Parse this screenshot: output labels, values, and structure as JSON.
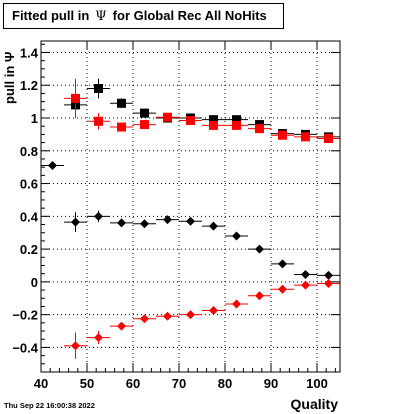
{
  "title": {
    "prefix": "Fitted pull in",
    "symbol": "Ψ",
    "suffix": "for Global Rec All NoHits"
  },
  "timestamp": "Thu Sep 22 16:00:38 2022",
  "chart_data": {
    "type": "scatter",
    "title": "Fitted pull in Ψ for Global Rec All NoHits",
    "xlabel": "Quality",
    "ylabel": "pull in Ψ",
    "xlim": [
      40,
      105
    ],
    "ylim": [
      -0.55,
      1.47
    ],
    "x_ticks": [
      40,
      50,
      60,
      70,
      80,
      90,
      100
    ],
    "y_ticks": [
      -0.4,
      -0.2,
      0,
      0.2,
      0.4,
      0.6,
      0.8,
      1,
      1.2,
      1.4
    ],
    "x_tick_labels": [
      "40",
      "50",
      "60",
      "70",
      "80",
      "90",
      "100"
    ],
    "y_tick_labels": [
      "−0.4",
      "−0.2",
      "0",
      "0.2",
      "0.4",
      "0.6",
      "0.8",
      "1",
      "1.2",
      "1.4"
    ],
    "grid": true,
    "series": [
      {
        "marker": "diamond",
        "color": "#000000",
        "points": [
          {
            "x": 42.5,
            "y": 0.71,
            "ex": 2.5,
            "ey": 0.02
          },
          {
            "x": 47.5,
            "y": 0.365,
            "ex": 2.5,
            "ey": 0.06
          },
          {
            "x": 52.5,
            "y": 0.4,
            "ex": 2.5,
            "ey": 0.035
          },
          {
            "x": 57.5,
            "y": 0.36,
            "ex": 2.5,
            "ey": 0.025
          },
          {
            "x": 62.5,
            "y": 0.355,
            "ex": 2.5,
            "ey": 0.015
          },
          {
            "x": 67.5,
            "y": 0.38,
            "ex": 2.5,
            "ey": 0.015
          },
          {
            "x": 72.5,
            "y": 0.37,
            "ex": 2.5,
            "ey": 0.012
          },
          {
            "x": 77.5,
            "y": 0.34,
            "ex": 2.5,
            "ey": 0.01
          },
          {
            "x": 82.5,
            "y": 0.28,
            "ex": 2.5,
            "ey": 0.01
          },
          {
            "x": 87.5,
            "y": 0.2,
            "ex": 2.5,
            "ey": 0.008
          },
          {
            "x": 92.5,
            "y": 0.11,
            "ex": 2.5,
            "ey": 0.006
          },
          {
            "x": 97.5,
            "y": 0.045,
            "ex": 2.5,
            "ey": 0.005
          },
          {
            "x": 102.5,
            "y": 0.04,
            "ex": 2.5,
            "ey": 0.005
          }
        ]
      },
      {
        "marker": "diamond",
        "color": "#ff0000",
        "points": [
          {
            "x": 47.5,
            "y": -0.39,
            "ex": 2.5,
            "ey": 0.08
          },
          {
            "x": 52.5,
            "y": -0.34,
            "ex": 2.5,
            "ey": 0.04
          },
          {
            "x": 57.5,
            "y": -0.27,
            "ex": 2.5,
            "ey": 0.025
          },
          {
            "x": 62.5,
            "y": -0.225,
            "ex": 2.5,
            "ey": 0.015
          },
          {
            "x": 67.5,
            "y": -0.21,
            "ex": 2.5,
            "ey": 0.012
          },
          {
            "x": 72.5,
            "y": -0.2,
            "ex": 2.5,
            "ey": 0.01
          },
          {
            "x": 77.5,
            "y": -0.175,
            "ex": 2.5,
            "ey": 0.01
          },
          {
            "x": 82.5,
            "y": -0.135,
            "ex": 2.5,
            "ey": 0.008
          },
          {
            "x": 87.5,
            "y": -0.085,
            "ex": 2.5,
            "ey": 0.007
          },
          {
            "x": 92.5,
            "y": -0.045,
            "ex": 2.5,
            "ey": 0.006
          },
          {
            "x": 97.5,
            "y": -0.02,
            "ex": 2.5,
            "ey": 0.005
          },
          {
            "x": 102.5,
            "y": -0.01,
            "ex": 2.5,
            "ey": 0.005
          }
        ]
      },
      {
        "marker": "square",
        "color": "#000000",
        "points": [
          {
            "x": 47.5,
            "y": 1.08,
            "ex": 2.5,
            "ey": 0.06
          },
          {
            "x": 52.5,
            "y": 1.18,
            "ex": 2.5,
            "ey": 0.06
          },
          {
            "x": 57.5,
            "y": 1.09,
            "ex": 2.5,
            "ey": 0.03
          },
          {
            "x": 62.5,
            "y": 1.03,
            "ex": 2.5,
            "ey": 0.02
          },
          {
            "x": 67.5,
            "y": 1.0,
            "ex": 2.5,
            "ey": 0.015
          },
          {
            "x": 72.5,
            "y": 1.0,
            "ex": 2.5,
            "ey": 0.012
          },
          {
            "x": 77.5,
            "y": 0.99,
            "ex": 2.5,
            "ey": 0.01
          },
          {
            "x": 82.5,
            "y": 0.99,
            "ex": 2.5,
            "ey": 0.01
          },
          {
            "x": 87.5,
            "y": 0.96,
            "ex": 2.5,
            "ey": 0.008
          },
          {
            "x": 92.5,
            "y": 0.905,
            "ex": 2.5,
            "ey": 0.007
          },
          {
            "x": 97.5,
            "y": 0.9,
            "ex": 2.5,
            "ey": 0.006
          },
          {
            "x": 102.5,
            "y": 0.885,
            "ex": 2.5,
            "ey": 0.006
          }
        ]
      },
      {
        "marker": "square",
        "color": "#ff0000",
        "points": [
          {
            "x": 47.5,
            "y": 1.12,
            "ex": 2.5,
            "ey": 0.12
          },
          {
            "x": 52.5,
            "y": 0.98,
            "ex": 2.5,
            "ey": 0.05
          },
          {
            "x": 57.5,
            "y": 0.945,
            "ex": 2.5,
            "ey": 0.025
          },
          {
            "x": 62.5,
            "y": 0.96,
            "ex": 2.5,
            "ey": 0.02
          },
          {
            "x": 67.5,
            "y": 1.005,
            "ex": 2.5,
            "ey": 0.015
          },
          {
            "x": 72.5,
            "y": 0.985,
            "ex": 2.5,
            "ey": 0.012
          },
          {
            "x": 77.5,
            "y": 0.955,
            "ex": 2.5,
            "ey": 0.01
          },
          {
            "x": 82.5,
            "y": 0.955,
            "ex": 2.5,
            "ey": 0.01
          },
          {
            "x": 87.5,
            "y": 0.935,
            "ex": 2.5,
            "ey": 0.008
          },
          {
            "x": 92.5,
            "y": 0.895,
            "ex": 2.5,
            "ey": 0.007
          },
          {
            "x": 97.5,
            "y": 0.885,
            "ex": 2.5,
            "ey": 0.006
          },
          {
            "x": 102.5,
            "y": 0.875,
            "ex": 2.5,
            "ey": 0.006
          }
        ]
      }
    ]
  }
}
